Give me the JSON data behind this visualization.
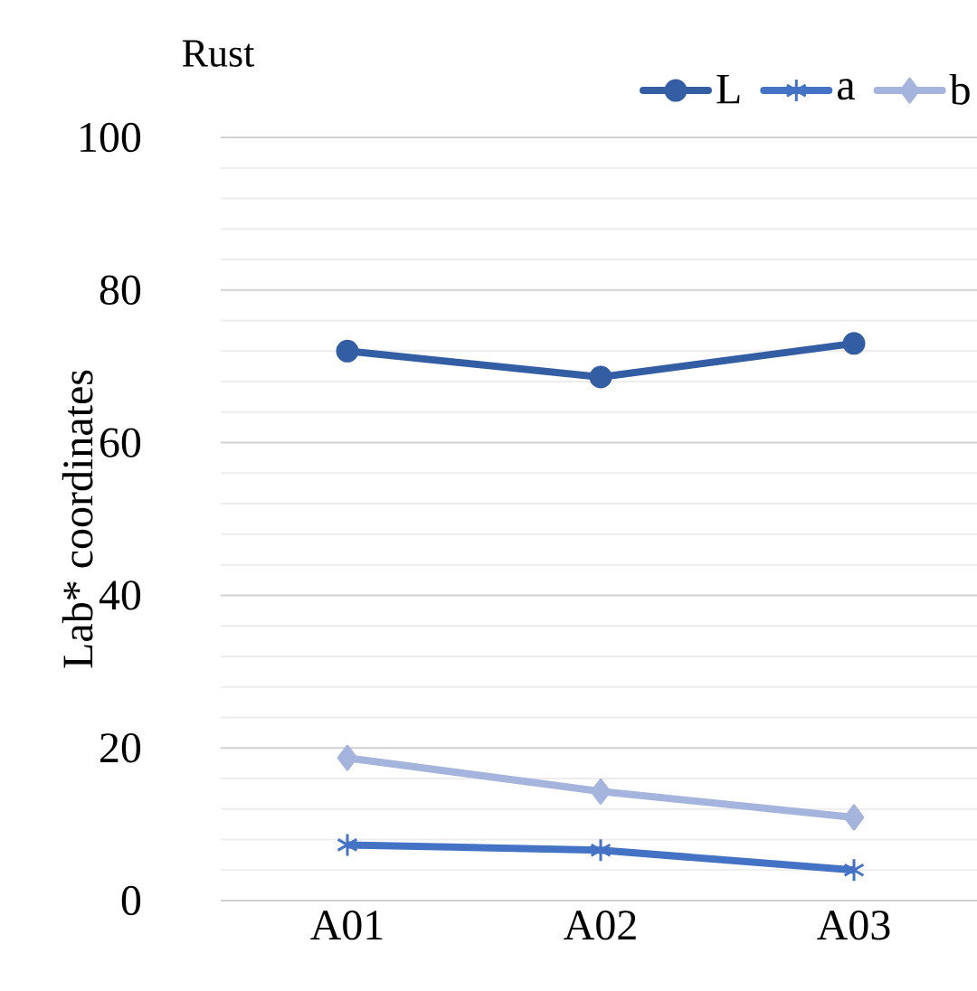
{
  "chart_data": {
    "type": "line",
    "title": "Rust",
    "ylabel": "Lab* coordinates",
    "categories": [
      "A01",
      "A02",
      "A03"
    ],
    "series": [
      {
        "name": "L",
        "color": "#335ea3",
        "marker": "circle",
        "values": [
          72.0,
          68.6,
          73.0
        ]
      },
      {
        "name": "a",
        "color": "#4472c4",
        "marker": "cross",
        "values": [
          7.3,
          6.6,
          4.0
        ]
      },
      {
        "name": "b",
        "color": "#a5b4dc",
        "marker": "diamond",
        "values": [
          18.7,
          14.3,
          10.9
        ]
      }
    ],
    "ylim": [
      0,
      100
    ],
    "yticks": [
      0,
      20,
      40,
      60,
      80,
      100
    ],
    "grid": "y",
    "legend": "top right"
  }
}
